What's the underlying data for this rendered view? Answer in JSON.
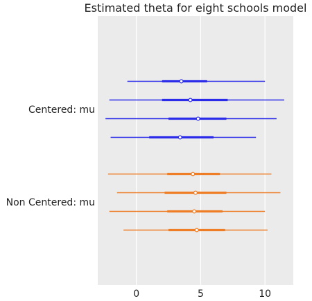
{
  "chart_data": {
    "type": "forest",
    "title": "Estimated theta for eight schools model",
    "xlabel": "",
    "ylabel": "",
    "xlim": [
      -3.0,
      12.2
    ],
    "x_ticks": [
      0,
      5,
      10
    ],
    "x_tick_labels": [
      "0",
      "5",
      "10"
    ],
    "grid": true,
    "background": "#ebebeb",
    "groups": [
      {
        "name": "Centered: mu",
        "color": "#2b2bea",
        "chains": [
          {
            "hdi_low": -0.7,
            "hdi_high": 10.0,
            "iqr_low": 2.0,
            "iqr_high": 5.5,
            "point": 3.5
          },
          {
            "hdi_low": -2.1,
            "hdi_high": 11.5,
            "iqr_low": 2.0,
            "iqr_high": 7.1,
            "point": 4.2
          },
          {
            "hdi_low": -2.4,
            "hdi_high": 10.9,
            "iqr_low": 2.5,
            "iqr_high": 7.0,
            "point": 4.8
          },
          {
            "hdi_low": -2.0,
            "hdi_high": 9.3,
            "iqr_low": 1.0,
            "iqr_high": 6.0,
            "point": 3.4
          }
        ]
      },
      {
        "name": "Non Centered: mu",
        "color": "#ee7d25",
        "chains": [
          {
            "hdi_low": -2.2,
            "hdi_high": 10.5,
            "iqr_low": 2.4,
            "iqr_high": 6.5,
            "point": 4.4
          },
          {
            "hdi_low": -1.5,
            "hdi_high": 11.2,
            "iqr_low": 2.2,
            "iqr_high": 7.0,
            "point": 4.6
          },
          {
            "hdi_low": -2.1,
            "hdi_high": 10.0,
            "iqr_low": 2.4,
            "iqr_high": 6.7,
            "point": 4.5
          },
          {
            "hdi_low": -1.0,
            "hdi_high": 10.2,
            "iqr_low": 2.5,
            "iqr_high": 6.9,
            "point": 4.7
          }
        ]
      }
    ]
  }
}
